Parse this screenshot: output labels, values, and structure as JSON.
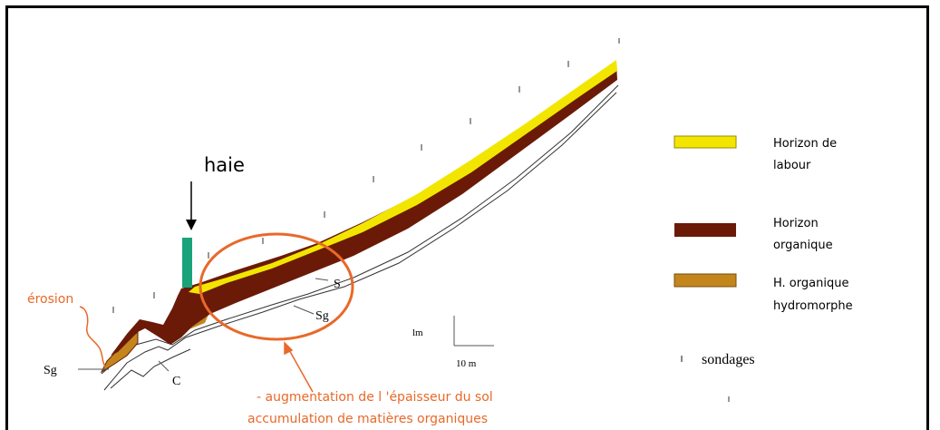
{
  "labels": {
    "haie": "haie",
    "erosion": "érosion",
    "sg_left": "Sg",
    "sg_mid": "Sg",
    "s": "S",
    "c": "C",
    "scale_vertical": "lm",
    "scale_horizontal": "10 m",
    "annotation_line1": "- augmentation de l 'épaisseur du sol",
    "annotation_line2": "accumulation de matières organiques"
  },
  "legend": {
    "items": [
      {
        "line1": "Horizon de",
        "line2": "labour",
        "color": "#f2e600"
      },
      {
        "line1": "Horizon",
        "line2": "organique",
        "color": "#6b1a08"
      },
      {
        "line1": "H. organique",
        "line2": "hydromorphe",
        "color": "#c2861c"
      }
    ],
    "sondages": "sondages"
  },
  "colors": {
    "labour": "#f2e600",
    "organique": "#6b1a08",
    "hydromorphe": "#c2861c",
    "hedge": "#1aa37a",
    "annotation": "#e8692a"
  }
}
